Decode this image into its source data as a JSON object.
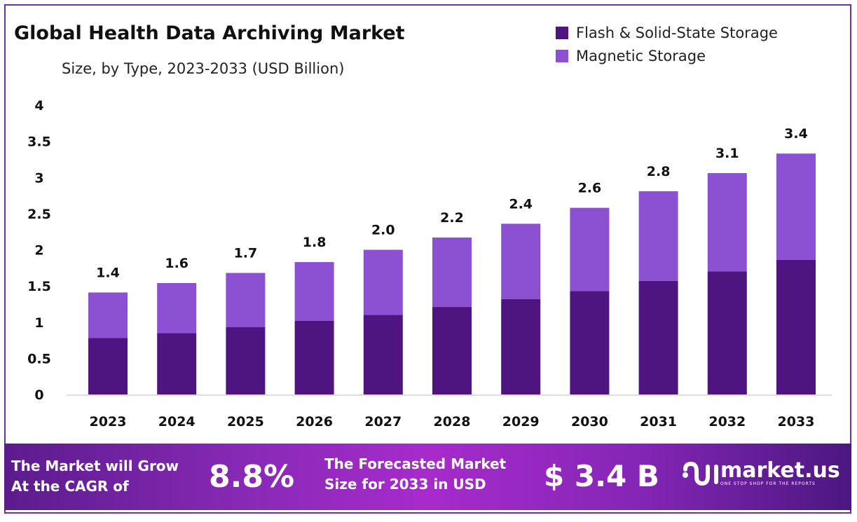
{
  "chart_data": {
    "type": "bar",
    "stacked": true,
    "title": "Global Health Data Archiving Market",
    "subtitle": "Size, by Type, 2023-2033 (USD Billion)",
    "categories": [
      "2023",
      "2024",
      "2025",
      "2026",
      "2027",
      "2028",
      "2029",
      "2030",
      "2031",
      "2032",
      "2033"
    ],
    "series": [
      {
        "name": "Flash & Solid-State Storage",
        "color": "#4e1580",
        "values": [
          0.78,
          0.85,
          0.93,
          1.02,
          1.1,
          1.21,
          1.32,
          1.43,
          1.57,
          1.7,
          1.86
        ]
      },
      {
        "name": "Magnetic Storage",
        "color": "#8c50d2",
        "values": [
          0.63,
          0.69,
          0.75,
          0.81,
          0.9,
          0.96,
          1.04,
          1.15,
          1.24,
          1.36,
          1.47
        ]
      }
    ],
    "totals_labels": [
      "1.4",
      "1.6",
      "1.7",
      "1.8",
      "2.0",
      "2.2",
      "2.4",
      "2.6",
      "2.8",
      "3.1",
      "3.4"
    ],
    "ylim": [
      0,
      4
    ],
    "yticks": [
      "0",
      "0.5",
      "1",
      "1.5",
      "2",
      "2.5",
      "3",
      "3.5",
      "4"
    ],
    "grid": false,
    "legend": "top-right"
  },
  "footer": {
    "cagr_text_1": "The Market will Grow",
    "cagr_text_2": "At the CAGR of",
    "cagr_value": "8.8%",
    "forecast_text_1": "The Forecasted Market",
    "forecast_text_2": "Size for 2033 in USD",
    "forecast_value": "$ 3.4 B",
    "brand": "market.us",
    "tagline": "ONE STOP SHOP FOR THE REPORTS"
  }
}
